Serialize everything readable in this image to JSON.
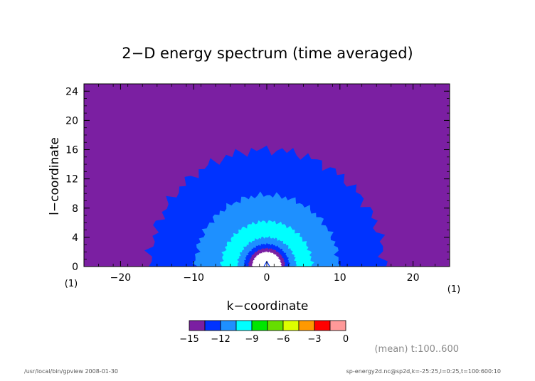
{
  "chart_data": {
    "type": "contour",
    "title": "2−D energy spectrum (time averaged)",
    "xlabel": "k−coordinate",
    "ylabel": "l−coordinate",
    "xlim": [
      -25,
      25
    ],
    "ylim": [
      0,
      25
    ],
    "x_ticks": [
      -20,
      -10,
      0,
      10,
      20
    ],
    "x_tick_labels": [
      "−20",
      "−10",
      "0",
      "10",
      "20"
    ],
    "y_ticks": [
      0,
      4,
      8,
      12,
      16,
      20,
      24
    ],
    "y_tick_labels": [
      "0",
      "4",
      "8",
      "12",
      "16",
      "20",
      "24"
    ],
    "x_unit": "(1)",
    "y_unit": "(1)",
    "regions": [
      {
        "level": -13.5,
        "radius": 16.0,
        "color": "#0033ff"
      },
      {
        "level": -12.0,
        "radius": 9.8,
        "color": "#1e90ff"
      },
      {
        "level": -10.5,
        "radius": 6.2,
        "color": "#00ffff"
      },
      {
        "level": -9.0,
        "radius": 4.0,
        "color": "#1e90ff"
      },
      {
        "level": -12.0,
        "radius": 3.1,
        "color": "#0033ff"
      },
      {
        "level": -15.0,
        "radius": 2.5,
        "color": "#7b1fa2"
      },
      {
        "level": 0.0,
        "radius": 2.0,
        "color": "#ffffff"
      }
    ],
    "colorbar": {
      "levels": [
        -15,
        -13.5,
        -12,
        -10.5,
        -9,
        -7.5,
        -6,
        -4.5,
        -3,
        -1.5,
        0
      ],
      "tick_labels": [
        "−15",
        "−12",
        "−9",
        "−6",
        "−3",
        "0"
      ],
      "colors": [
        "#7b1fa2",
        "#0033ff",
        "#1e90ff",
        "#00ffff",
        "#00e600",
        "#66dd00",
        "#ddff00",
        "#ff9900",
        "#ff0000",
        "#ff9999"
      ]
    },
    "background_color": "#7b1fa2",
    "mean_note": "(mean) t:100..600"
  },
  "footer": {
    "left": "/usr/local/bin/gpview   2008-01-30",
    "right": "sp-energy2d.nc@sp2d,k=-25:25,l=0:25,t=100:600:10"
  }
}
